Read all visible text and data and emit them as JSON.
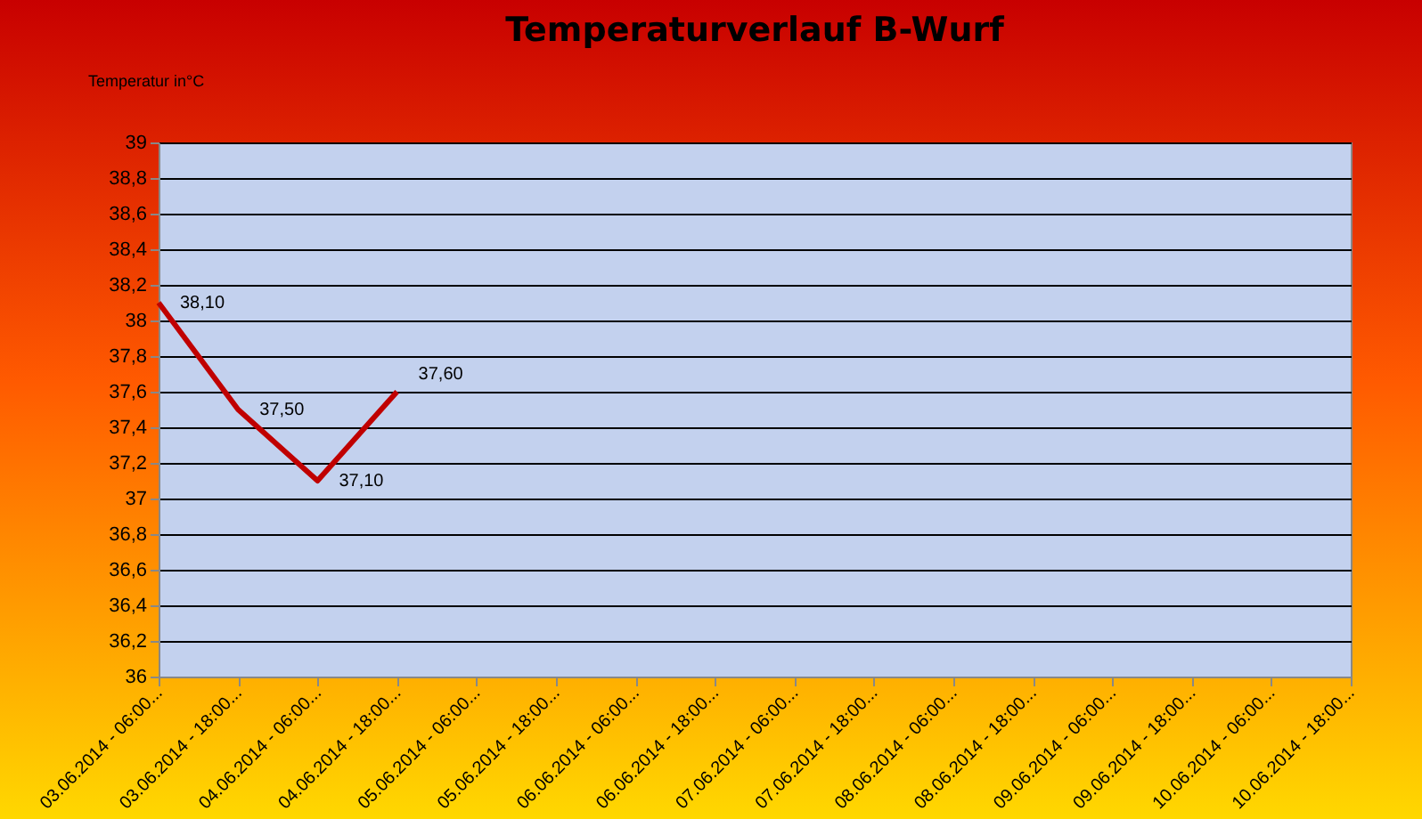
{
  "chart_data": {
    "type": "line",
    "title": "Temperaturverlauf  B-Wurf",
    "ylabel": "Temperatur in°C",
    "categories": [
      "03.06.2014 - 06:00...",
      "03.06.2014 - 18:00...",
      "04.06.2014 - 06:00...",
      "04.06.2014 - 18:00...",
      "05.06.2014 - 06:00...",
      "05.06.2014 - 18:00...",
      "06.06.2014 - 06:00...",
      "06.06.2014 - 18:00...",
      "07.06.2014 - 06:00...",
      "07.06.2014 - 18:00...",
      "08.06.2014 - 06:00...",
      "08.06.2014 - 18:00...",
      "09.06.2014 - 06:00...",
      "09.06.2014 - 18:00...",
      "10.06.2014 - 06:00...",
      "10.06.2014 - 18:00..."
    ],
    "series": [
      {
        "color": "#c00000",
        "values": [
          38.1,
          37.5,
          37.1,
          37.6,
          null,
          null,
          null,
          null,
          null,
          null,
          null,
          null,
          null,
          null,
          null,
          null
        ],
        "value_labels": [
          "38,10",
          "37,50",
          "37,10",
          "37,60",
          null,
          null,
          null,
          null,
          null,
          null,
          null,
          null,
          null,
          null,
          null,
          null
        ]
      }
    ],
    "ylim": [
      36,
      39
    ],
    "yticks": [
      {
        "value": 36,
        "label": "36"
      },
      {
        "value": 36.2,
        "label": "36,2"
      },
      {
        "value": 36.4,
        "label": "36,4"
      },
      {
        "value": 36.6,
        "label": "36,6"
      },
      {
        "value": 36.8,
        "label": "36,8"
      },
      {
        "value": 37,
        "label": "37"
      },
      {
        "value": 37.2,
        "label": "37,2"
      },
      {
        "value": 37.4,
        "label": "37,4"
      },
      {
        "value": 37.6,
        "label": "37,6"
      },
      {
        "value": 37.8,
        "label": "37,8"
      },
      {
        "value": 38,
        "label": "38"
      },
      {
        "value": 38.2,
        "label": "38,2"
      },
      {
        "value": 38.4,
        "label": "38,4"
      },
      {
        "value": 38.6,
        "label": "38,6"
      },
      {
        "value": 38.8,
        "label": "38,8"
      },
      {
        "value": 39,
        "label": "39"
      }
    ],
    "grid": "y",
    "legend": false,
    "marker": "none",
    "line_style": "solid"
  }
}
